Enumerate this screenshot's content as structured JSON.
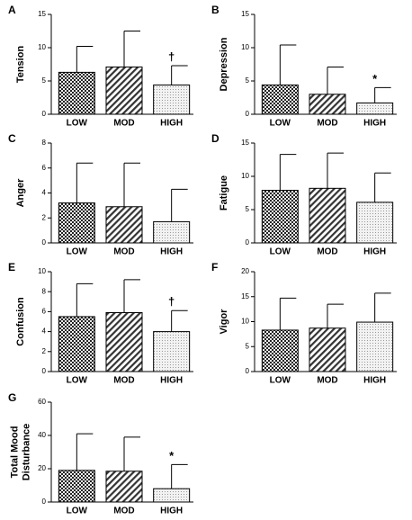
{
  "chart_data": [
    {
      "type": "bar",
      "panel": "A",
      "ylabel": "Tension",
      "categories": [
        "LOW",
        "MOD",
        "HIGH"
      ],
      "values": [
        6.3,
        7.1,
        4.4
      ],
      "errors": [
        3.9,
        5.4,
        2.9
      ],
      "value_annotations": [
        null,
        null,
        "†"
      ],
      "ylim": [
        0,
        15
      ],
      "yticks": [
        0,
        5,
        10,
        15
      ]
    },
    {
      "type": "bar",
      "panel": "B",
      "ylabel": "Depression",
      "categories": [
        "LOW",
        "MOD",
        "HIGH"
      ],
      "values": [
        4.4,
        3.0,
        1.7
      ],
      "errors": [
        6.0,
        4.1,
        2.3
      ],
      "value_annotations": [
        null,
        null,
        "*"
      ],
      "ylim": [
        0,
        15
      ],
      "yticks": [
        0,
        5,
        10,
        15
      ]
    },
    {
      "type": "bar",
      "panel": "C",
      "ylabel": "Anger",
      "categories": [
        "LOW",
        "MOD",
        "HIGH"
      ],
      "values": [
        3.2,
        2.9,
        1.7
      ],
      "errors": [
        3.2,
        3.5,
        2.6
      ],
      "ylim": [
        0,
        8
      ],
      "yticks": [
        0,
        2,
        4,
        6,
        8
      ]
    },
    {
      "type": "bar",
      "panel": "D",
      "ylabel": "Fatigue",
      "categories": [
        "LOW",
        "MOD",
        "HIGH"
      ],
      "values": [
        7.9,
        8.2,
        6.1
      ],
      "errors": [
        5.4,
        5.3,
        4.4
      ],
      "ylim": [
        0,
        15
      ],
      "yticks": [
        0,
        5,
        10,
        15
      ]
    },
    {
      "type": "bar",
      "panel": "E",
      "ylabel": "Confusion",
      "categories": [
        "LOW",
        "MOD",
        "HIGH"
      ],
      "values": [
        5.5,
        5.9,
        4.0
      ],
      "errors": [
        3.3,
        3.3,
        2.1
      ],
      "value_annotations": [
        null,
        null,
        "†"
      ],
      "ylim": [
        0,
        10
      ],
      "yticks": [
        0,
        2,
        4,
        6,
        8,
        10
      ]
    },
    {
      "type": "bar",
      "panel": "F",
      "ylabel": "Vigor",
      "categories": [
        "LOW",
        "MOD",
        "HIGH"
      ],
      "values": [
        8.3,
        8.7,
        9.9
      ],
      "errors": [
        6.4,
        4.8,
        5.8
      ],
      "ylim": [
        0,
        20
      ],
      "yticks": [
        0,
        5,
        10,
        15,
        20
      ]
    },
    {
      "type": "bar",
      "panel": "G",
      "ylabel": [
        "Total Mood",
        "Disturbance"
      ],
      "categories": [
        "LOW",
        "MOD",
        "HIGH"
      ],
      "values": [
        19,
        18.5,
        8
      ],
      "errors": [
        22,
        20.5,
        14.5
      ],
      "value_annotations": [
        null,
        null,
        "*"
      ],
      "ylim": [
        0,
        60
      ],
      "yticks": [
        0,
        20,
        40,
        60
      ]
    }
  ]
}
